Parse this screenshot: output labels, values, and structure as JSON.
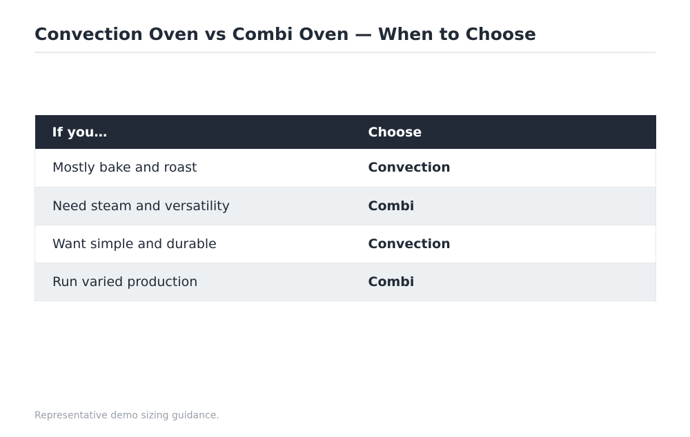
{
  "page": {
    "title": "Convection Oven vs Combi Oven — When to Choose",
    "footnote": "Representative demo sizing guidance."
  },
  "table": {
    "headers": [
      "If you…",
      "Choose"
    ],
    "rows": [
      {
        "condition": "Mostly bake and roast",
        "choice": "Convection"
      },
      {
        "condition": "Need steam and versatility",
        "choice": "Combi"
      },
      {
        "condition": "Want simple and durable",
        "choice": "Convection"
      },
      {
        "condition": "Run varied production",
        "choice": "Combi"
      }
    ]
  },
  "colors": {
    "header_background": "#212a36",
    "header_text": "#ffffff",
    "body_text": "#212a36",
    "alternate_row": "#ecf0f3",
    "footnote_text": "#9aa1aa"
  }
}
